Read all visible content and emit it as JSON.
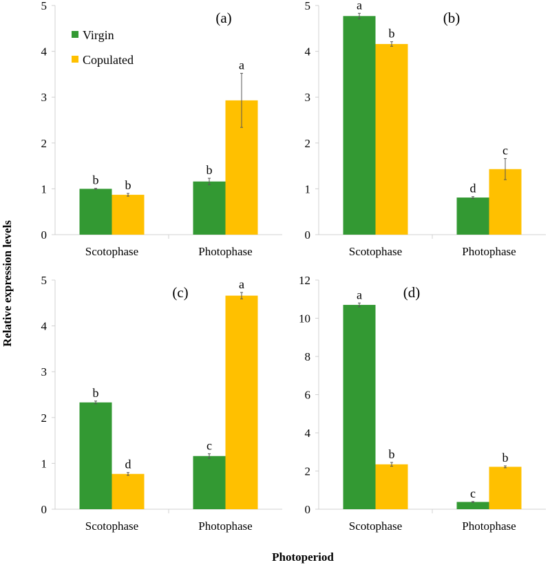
{
  "chart_data": [
    {
      "type": "bar",
      "panel_label": "(a)",
      "categories": [
        "Scotophase",
        "Photophase"
      ],
      "ylim": [
        0,
        5
      ],
      "yticks": [
        0,
        1,
        2,
        3,
        4,
        5
      ],
      "series": [
        {
          "name": "Virgin",
          "values": [
            1.0,
            1.16
          ],
          "errors": [
            0.01,
            0.07
          ],
          "letters": [
            "b",
            "b"
          ]
        },
        {
          "name": "Copulated",
          "values": [
            0.87,
            2.93
          ],
          "errors": [
            0.03,
            0.59
          ],
          "letters": [
            "b",
            "a"
          ]
        }
      ],
      "legend": "top-left"
    },
    {
      "type": "bar",
      "panel_label": "(b)",
      "categories": [
        "Scotophase",
        "Photophase"
      ],
      "ylim": [
        0,
        5
      ],
      "yticks": [
        0,
        1,
        2,
        3,
        4,
        5
      ],
      "series": [
        {
          "name": "Virgin",
          "values": [
            4.77,
            0.81
          ],
          "errors": [
            0.06,
            0.02
          ],
          "letters": [
            "a",
            "d"
          ]
        },
        {
          "name": "Copulated",
          "values": [
            4.16,
            1.43
          ],
          "errors": [
            0.05,
            0.23
          ],
          "letters": [
            "b",
            "c"
          ]
        }
      ]
    },
    {
      "type": "bar",
      "panel_label": "(c)",
      "categories": [
        "Scotophase",
        "Photophase"
      ],
      "ylim": [
        0,
        5
      ],
      "yticks": [
        0,
        1,
        2,
        3,
        4,
        5
      ],
      "series": [
        {
          "name": "Virgin",
          "values": [
            2.33,
            1.16
          ],
          "errors": [
            0.03,
            0.05
          ],
          "letters": [
            "b",
            "c"
          ]
        },
        {
          "name": "Copulated",
          "values": [
            0.77,
            4.66
          ],
          "errors": [
            0.03,
            0.07
          ],
          "letters": [
            "d",
            "a"
          ]
        }
      ]
    },
    {
      "type": "bar",
      "panel_label": "(d)",
      "categories": [
        "Scotophase",
        "Photophase"
      ],
      "ylim": [
        0,
        12
      ],
      "yticks": [
        0,
        2,
        4,
        6,
        8,
        10,
        12
      ],
      "series": [
        {
          "name": "Virgin",
          "values": [
            10.7,
            0.38
          ],
          "errors": [
            0.1,
            0.02
          ],
          "letters": [
            "a",
            "c"
          ]
        },
        {
          "name": "Copulated",
          "values": [
            2.35,
            2.22
          ],
          "errors": [
            0.1,
            0.05
          ],
          "letters": [
            "b",
            "b"
          ]
        }
      ]
    }
  ],
  "ylabel": "Relative expression levels",
  "xlabel": "Photoperiod",
  "colors": {
    "Virgin": "#339933",
    "Copulated": "#ffc000"
  }
}
